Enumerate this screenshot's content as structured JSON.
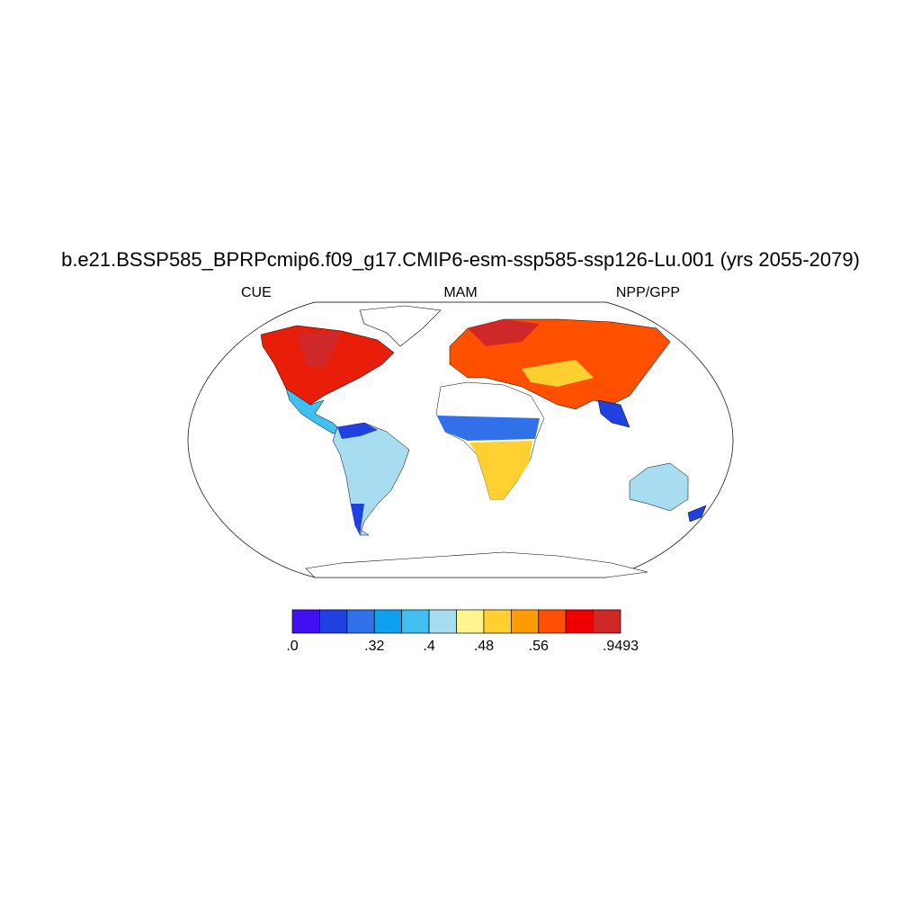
{
  "title": "b.e21.BSSP585_BPRPcmip6.f09_g17.CMIP6-esm-ssp585-ssp126-Lu.001 (yrs 2055-2079)",
  "left_label": "CUE",
  "center_label": "MAM",
  "right_label": "NPP/GPP",
  "colorbar": {
    "colors": [
      "#4010f0",
      "#2040e0",
      "#3070e8",
      "#10a0f0",
      "#40c0f0",
      "#a8dcf0",
      "#fff590",
      "#ffd030",
      "#ff9a00",
      "#ff5000",
      "#ee0000",
      "#d02828"
    ],
    "labels": [
      ".0",
      null,
      null,
      ".32",
      null,
      ".4",
      null,
      ".48",
      null,
      ".56",
      null,
      null,
      ".9493"
    ]
  }
}
